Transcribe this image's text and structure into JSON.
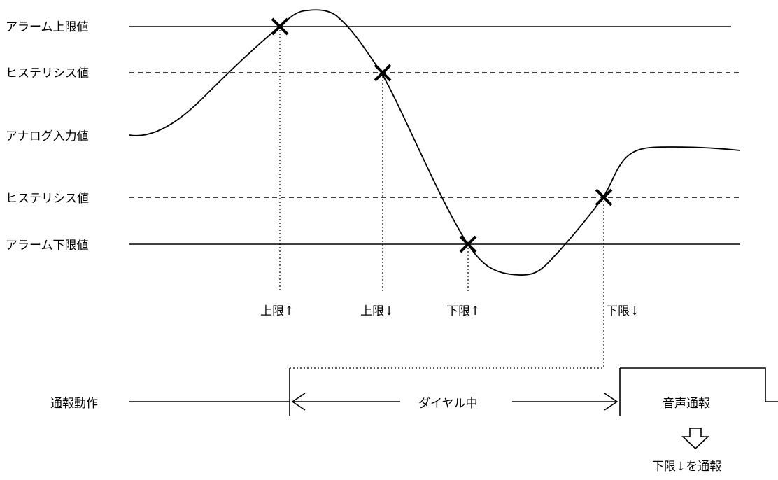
{
  "labels": {
    "alarm_upper": "アラーム上限値",
    "hysteresis_upper": "ヒステリシス値",
    "analog_input": "アナログ入力値",
    "hysteresis_lower": "ヒステリシス値",
    "alarm_lower": "アラーム下限値",
    "notify_action": "通報動作"
  },
  "events": {
    "upper_rise": "上限↑",
    "upper_fall": "上限↓",
    "lower_rise": "下限↑",
    "lower_fall": "下限↓"
  },
  "timeline": {
    "dialing": "ダイヤル中",
    "voice_notify": "音声通報",
    "notify_result": "下限↓を通報"
  },
  "colors": {
    "line": "#000000",
    "background": "#ffffff"
  }
}
